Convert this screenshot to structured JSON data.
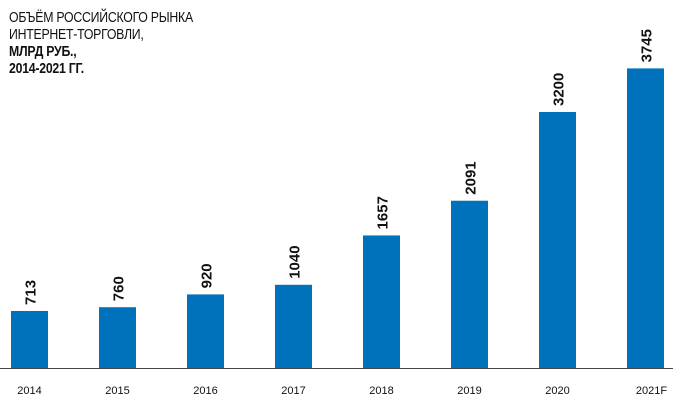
{
  "title_lines": [
    "ОБЪЁМ РОССИЙСКОГО РЫНКА",
    "ИНТЕРНЕТ-ТОРГОВЛИ,",
    "МЛРД РУБ.,",
    "2014-2021 ГГ."
  ],
  "colors": {
    "bar": "#0072BC",
    "text": "#111111",
    "axis": "#444444"
  },
  "chart_data": {
    "type": "bar",
    "title": "ОБЪЁМ РОССИЙСКОГО РЫНКА ИНТЕРНЕТ-ТОРГОВЛИ, МЛРД РУБ., 2014-2021 ГГ.",
    "categories": [
      "2014",
      "2015",
      "2016",
      "2017",
      "2018",
      "2019",
      "2020",
      "2021F"
    ],
    "values": [
      713,
      760,
      920,
      1040,
      1657,
      2091,
      3200,
      3745
    ],
    "data_labels": [
      "713",
      "760",
      "920",
      "1040",
      "1657",
      "2091",
      "3200",
      "3745"
    ],
    "xlabel": "",
    "ylabel": "",
    "ylim": [
      0,
      4000
    ],
    "grid": false,
    "legend": "none"
  }
}
